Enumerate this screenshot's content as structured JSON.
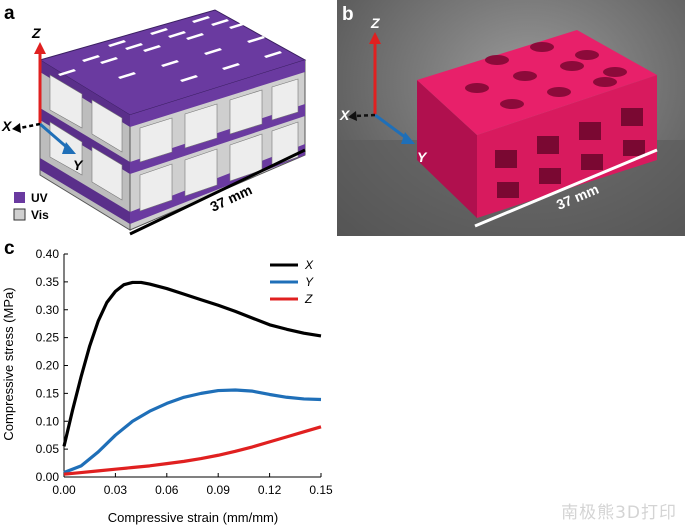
{
  "panel_a": {
    "letter": "a",
    "axis_z": "Z",
    "axis_x": "X",
    "axis_y": "Y",
    "legend": [
      {
        "label": "UV",
        "color": "#6a3aa0"
      },
      {
        "label": "Vis",
        "color": "#d0d0d0"
      }
    ],
    "dimension": "37 mm"
  },
  "panel_b": {
    "letter": "b",
    "axis_z": "Z",
    "axis_x": "X",
    "axis_y": "Y",
    "dimension": "37 mm",
    "print_color": "#e8206a"
  },
  "panel_c": {
    "letter": "c"
  },
  "chart_data": {
    "type": "line",
    "title": "",
    "xlabel": "Compressive strain (mm/mm)",
    "ylabel": "Compressive stress (MPa)",
    "xlim": [
      0,
      0.15
    ],
    "ylim": [
      0,
      0.4
    ],
    "xticks": [
      "0.00",
      "0.03",
      "0.06",
      "0.09",
      "0.12",
      "0.15"
    ],
    "yticks": [
      "0.00",
      "0.05",
      "0.10",
      "0.15",
      "0.20",
      "0.25",
      "0.30",
      "0.35",
      "0.40"
    ],
    "legend_position": "top-right",
    "series": [
      {
        "name": "X",
        "color": "#000000",
        "x": [
          0.0,
          0.005,
          0.01,
          0.015,
          0.02,
          0.025,
          0.03,
          0.035,
          0.04,
          0.045,
          0.05,
          0.06,
          0.07,
          0.08,
          0.09,
          0.1,
          0.11,
          0.12,
          0.13,
          0.14,
          0.15
        ],
        "y": [
          0.055,
          0.12,
          0.18,
          0.235,
          0.28,
          0.313,
          0.333,
          0.345,
          0.349,
          0.349,
          0.346,
          0.338,
          0.328,
          0.318,
          0.308,
          0.297,
          0.285,
          0.273,
          0.265,
          0.258,
          0.253
        ]
      },
      {
        "name": "Y",
        "color": "#1f6fb8",
        "x": [
          0.0,
          0.01,
          0.02,
          0.03,
          0.04,
          0.05,
          0.06,
          0.07,
          0.08,
          0.09,
          0.1,
          0.11,
          0.12,
          0.13,
          0.14,
          0.15
        ],
        "y": [
          0.008,
          0.02,
          0.045,
          0.075,
          0.1,
          0.118,
          0.132,
          0.143,
          0.15,
          0.155,
          0.156,
          0.154,
          0.148,
          0.143,
          0.14,
          0.139
        ]
      },
      {
        "name": "Z",
        "color": "#e02020",
        "x": [
          0.0,
          0.01,
          0.02,
          0.03,
          0.04,
          0.05,
          0.06,
          0.07,
          0.08,
          0.09,
          0.1,
          0.11,
          0.12,
          0.13,
          0.14,
          0.15
        ],
        "y": [
          0.005,
          0.008,
          0.011,
          0.014,
          0.017,
          0.02,
          0.024,
          0.028,
          0.033,
          0.039,
          0.046,
          0.054,
          0.063,
          0.072,
          0.081,
          0.09
        ]
      }
    ]
  },
  "watermark": "南极熊3D打印"
}
